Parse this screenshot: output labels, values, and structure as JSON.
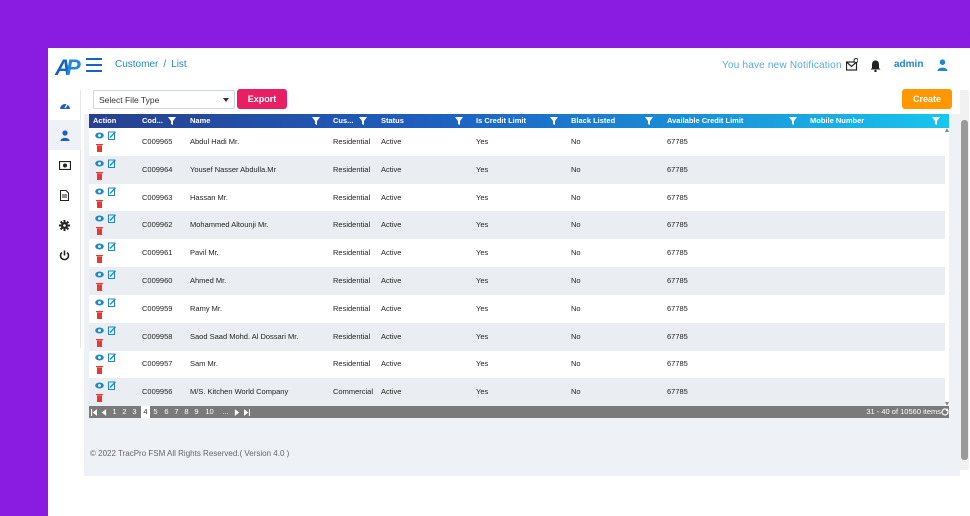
{
  "header": {
    "breadcrumb": [
      "Customer",
      "List"
    ],
    "breadcrumb_sep": "/",
    "notification_text": "You have new Notification",
    "user": "admin",
    "logo_text": "AP",
    "icons": [
      "hamburger-icon",
      "mail-icon",
      "bell-icon",
      "user-icon"
    ]
  },
  "sidebar": {
    "items": [
      {
        "name": "dashboard",
        "icon": "gauge-icon"
      },
      {
        "name": "customers",
        "icon": "user-icon",
        "active": true
      },
      {
        "name": "billing",
        "icon": "money-icon"
      },
      {
        "name": "documents",
        "icon": "document-icon"
      },
      {
        "name": "settings",
        "icon": "gear-icon"
      },
      {
        "name": "logout",
        "icon": "power-icon"
      }
    ]
  },
  "toolbar": {
    "file_type_placeholder": "Select File Type",
    "export_label": "Export",
    "create_label": "Create"
  },
  "grid": {
    "columns": [
      "Action",
      "Cod...",
      "Name",
      "Cus...",
      "Status",
      "Is Credit Limit",
      "Black Listed",
      "Available Credit Limit",
      "Mobile Number"
    ],
    "rows": [
      {
        "code": "C009965",
        "name": "Abdul Hadi Mr.",
        "type": "Residential",
        "status": "Active",
        "credit": "Yes",
        "black": "No",
        "avail": "67785",
        "mobile": ""
      },
      {
        "code": "C009964",
        "name": "Yousef Nasser Abdulla.Mr",
        "type": "Residential",
        "status": "Active",
        "credit": "Yes",
        "black": "No",
        "avail": "67785",
        "mobile": ""
      },
      {
        "code": "C009963",
        "name": "Hassan Mr.",
        "type": "Residential",
        "status": "Active",
        "credit": "Yes",
        "black": "No",
        "avail": "67785",
        "mobile": ""
      },
      {
        "code": "C009962",
        "name": "Mohammed Altounji Mr.",
        "type": "Residential",
        "status": "Active",
        "credit": "Yes",
        "black": "No",
        "avail": "67785",
        "mobile": ""
      },
      {
        "code": "C009961",
        "name": "Pavil Mr.",
        "type": "Residential",
        "status": "Active",
        "credit": "Yes",
        "black": "No",
        "avail": "67785",
        "mobile": ""
      },
      {
        "code": "C009960",
        "name": "Ahmed Mr.",
        "type": "Residential",
        "status": "Active",
        "credit": "Yes",
        "black": "No",
        "avail": "67785",
        "mobile": ""
      },
      {
        "code": "C009959",
        "name": "Ramy Mr.",
        "type": "Residential",
        "status": "Active",
        "credit": "Yes",
        "black": "No",
        "avail": "67785",
        "mobile": ""
      },
      {
        "code": "C009958",
        "name": "Saod Saad Mohd. Al Dossari Mr.",
        "type": "Residential",
        "status": "Active",
        "credit": "Yes",
        "black": "No",
        "avail": "67785",
        "mobile": ""
      },
      {
        "code": "C009957",
        "name": "Sam Mr.",
        "type": "Residential",
        "status": "Active",
        "credit": "Yes",
        "black": "No",
        "avail": "67785",
        "mobile": ""
      },
      {
        "code": "C009956",
        "name": "M/S. Kitchen World Company",
        "type": "Commercial",
        "status": "Active",
        "credit": "Yes",
        "black": "No",
        "avail": "67785",
        "mobile": ""
      }
    ]
  },
  "pager": {
    "pages": [
      "1",
      "2",
      "3",
      "4",
      "5",
      "6",
      "7",
      "8",
      "9",
      "10",
      "..."
    ],
    "current": "4",
    "info": "31 - 40 of 10560 items"
  },
  "footer": {
    "text": "© 2022 TracPro FSM All Rights Reserved.( Version 4.0 )"
  },
  "colors": {
    "frame": "#8a1be0",
    "primary": "#1e88c8",
    "export": "#e91e63",
    "create": "#ff9800"
  }
}
